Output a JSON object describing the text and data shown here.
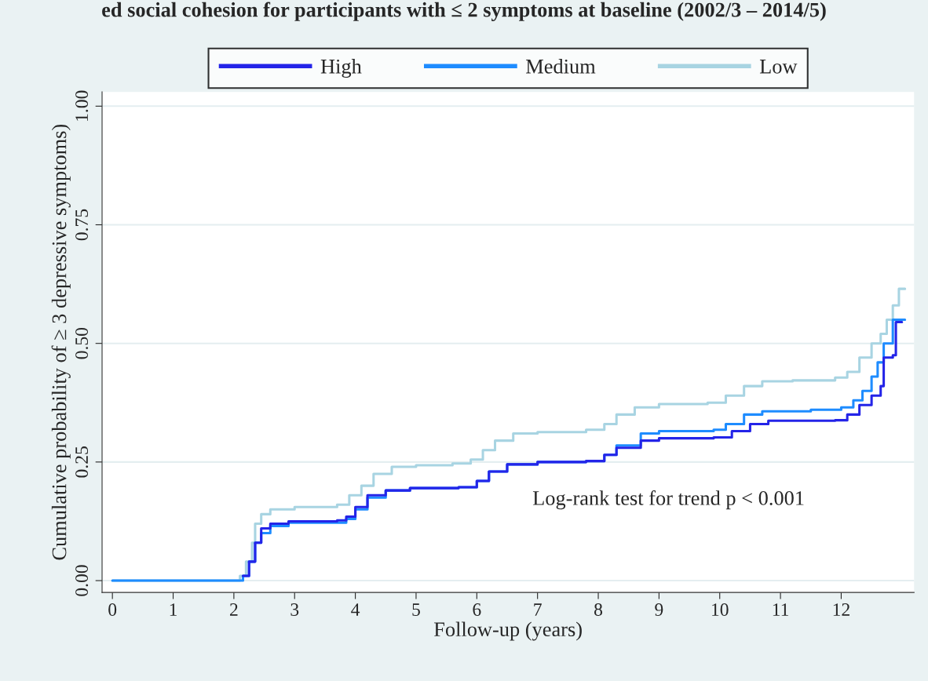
{
  "chart_data": {
    "type": "step",
    "title": "ed social cohesion for participants with ≤ 2 symptoms at baseline (2002/3 – 2014/5)",
    "xlabel": "Follow-up (years)",
    "ylabel": "Cumulative probability of ≥ 3 depressive symptoms)",
    "xlim": [
      -0.17,
      13.2
    ],
    "xticks": [
      0,
      1,
      2,
      3,
      4,
      5,
      6,
      7,
      8,
      9,
      10,
      11,
      12
    ],
    "ylim": [
      -0.025,
      1.03
    ],
    "yticks": [
      {
        "value": 0,
        "label": "0.00"
      },
      {
        "value": 0.25,
        "label": "0.25"
      },
      {
        "value": 0.5,
        "label": "0.50"
      },
      {
        "value": 0.75,
        "label": "0.75"
      },
      {
        "value": 1,
        "label": "1.00"
      }
    ],
    "grid": "y",
    "legend": "top",
    "marker": "none",
    "line_style": "solid",
    "annotations": [
      "Log-rank test for trend p < 0.001"
    ],
    "series": [
      {
        "name": "High",
        "color": "#2424e8",
        "x": [
          2.15,
          2.25,
          2.35,
          2.45,
          2.6,
          2.9,
          3.7,
          3.85,
          4.0,
          4.2,
          4.5,
          4.9,
          5.7,
          6.0,
          6.2,
          6.5,
          7.0,
          7.8,
          8.1,
          8.3,
          8.7,
          9.0,
          9.9,
          10.2,
          10.5,
          10.8,
          11.9,
          12.1,
          12.3,
          12.5,
          12.65,
          12.7,
          12.85,
          12.9,
          13.0
        ],
        "values": [
          0.01,
          0.04,
          0.08,
          0.11,
          0.12,
          0.125,
          0.127,
          0.135,
          0.155,
          0.18,
          0.19,
          0.195,
          0.197,
          0.21,
          0.23,
          0.245,
          0.25,
          0.252,
          0.265,
          0.28,
          0.295,
          0.3,
          0.302,
          0.315,
          0.33,
          0.337,
          0.338,
          0.35,
          0.37,
          0.39,
          0.41,
          0.47,
          0.475,
          0.545,
          0.545
        ]
      },
      {
        "name": "Medium",
        "color": "#1e8cff",
        "x": [
          0,
          2.0,
          2.15,
          2.25,
          2.35,
          2.45,
          2.6,
          2.9,
          3.7,
          3.85,
          4.0,
          4.2,
          4.5,
          4.9,
          5.7,
          6.0,
          6.2,
          6.5,
          7.0,
          7.8,
          8.1,
          8.3,
          8.7,
          9.0,
          9.9,
          10.1,
          10.4,
          10.7,
          11.5,
          12.0,
          12.2,
          12.35,
          12.5,
          12.6,
          12.7,
          12.85,
          13.05
        ],
        "values": [
          0,
          0,
          0.01,
          0.04,
          0.08,
          0.1,
          0.115,
          0.122,
          0.122,
          0.13,
          0.15,
          0.175,
          0.19,
          0.195,
          0.197,
          0.21,
          0.23,
          0.245,
          0.25,
          0.252,
          0.265,
          0.285,
          0.31,
          0.315,
          0.318,
          0.33,
          0.35,
          0.357,
          0.36,
          0.365,
          0.38,
          0.4,
          0.43,
          0.46,
          0.5,
          0.55,
          0.55
        ]
      },
      {
        "name": "Low",
        "color": "#a8d4e2",
        "x": [
          0,
          1.95,
          2.1,
          2.2,
          2.3,
          2.35,
          2.45,
          2.6,
          3.0,
          3.7,
          3.9,
          4.1,
          4.3,
          4.6,
          5.0,
          5.6,
          5.9,
          6.1,
          6.3,
          6.6,
          7.0,
          7.8,
          8.1,
          8.3,
          8.6,
          9.0,
          9.8,
          10.1,
          10.4,
          10.7,
          11.2,
          11.9,
          12.1,
          12.3,
          12.5,
          12.65,
          12.75,
          12.85,
          12.95,
          13.05
        ],
        "values": [
          0,
          0,
          0.01,
          0.04,
          0.08,
          0.12,
          0.14,
          0.15,
          0.155,
          0.16,
          0.18,
          0.2,
          0.225,
          0.24,
          0.243,
          0.247,
          0.255,
          0.275,
          0.295,
          0.31,
          0.313,
          0.318,
          0.33,
          0.35,
          0.365,
          0.372,
          0.375,
          0.39,
          0.41,
          0.42,
          0.422,
          0.428,
          0.44,
          0.47,
          0.5,
          0.52,
          0.55,
          0.58,
          0.615,
          0.615
        ]
      }
    ]
  }
}
